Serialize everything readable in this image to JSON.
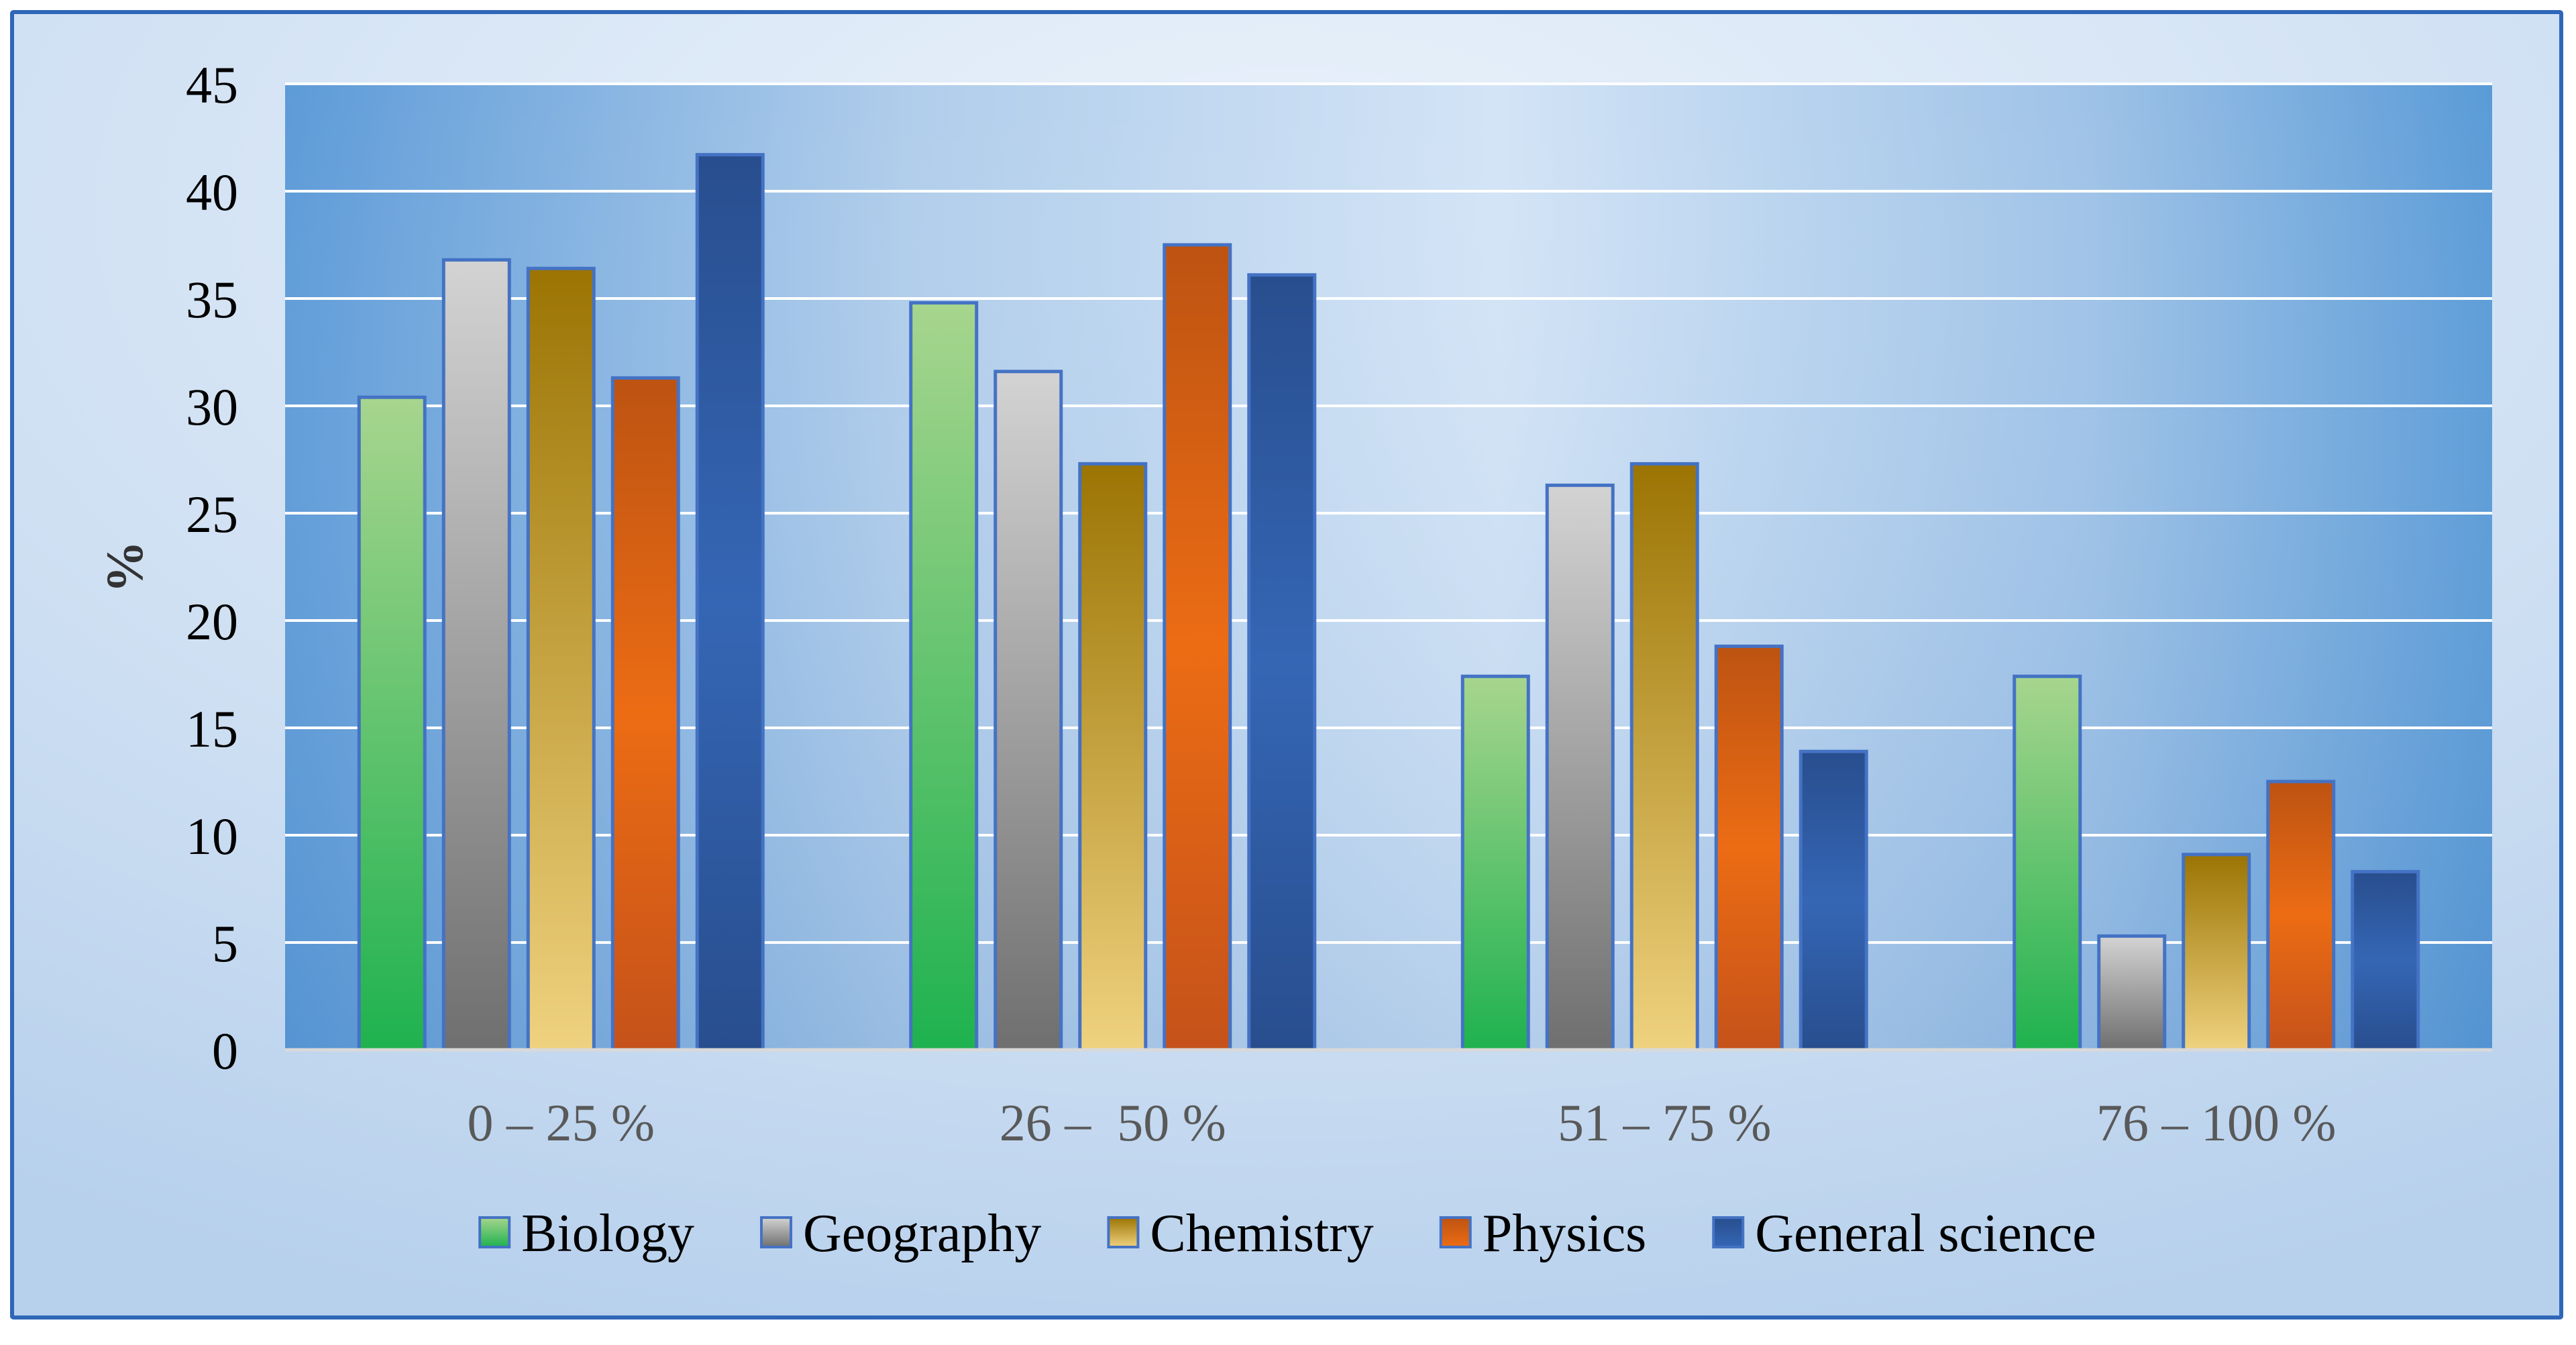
{
  "chart_data": {
    "type": "bar",
    "title": "",
    "xlabel": "",
    "ylabel": "%",
    "ylim": [
      0,
      45
    ],
    "yticks": [
      "0",
      "5",
      "10",
      "15",
      "20",
      "25",
      "30",
      "35",
      "40",
      "45"
    ],
    "grid": true,
    "legend_position": "bottom",
    "categories": [
      "0 – 25 %",
      "26 –  50 %",
      "51 – 75 %",
      "76 – 100 %"
    ],
    "series": [
      {
        "name": "Biology",
        "values": [
          30.4,
          34.8,
          17.4,
          17.4
        ],
        "colors": {
          "top": "#a7d58e",
          "bottom": "#1fb24f"
        }
      },
      {
        "name": "Geography",
        "values": [
          36.8,
          31.6,
          26.3,
          5.3
        ],
        "colors": {
          "top": "#d3d3d3",
          "bottom": "#6f6f6f"
        }
      },
      {
        "name": "Chemistry",
        "values": [
          36.4,
          27.3,
          27.3,
          9.1
        ],
        "colors": {
          "top": "#9b7403",
          "bottom": "#efd27f"
        }
      },
      {
        "name": "Physics",
        "values": [
          31.3,
          37.5,
          18.8,
          12.5
        ],
        "colors": {
          "top": "#bd5312",
          "bottom": "#c5521a",
          "mid": "#ec6c14"
        }
      },
      {
        "name": "General science",
        "values": [
          41.7,
          36.1,
          13.9,
          8.3
        ],
        "colors": {
          "top": "#284e8e",
          "bottom": "#284e8e",
          "mid": "#3566b5"
        }
      }
    ]
  },
  "colors": {
    "frame_border": "#2f67b8",
    "bar_border": "#4472c4",
    "grid": "#ffffff",
    "text": "#000000",
    "axis_label_text": "#595959"
  }
}
